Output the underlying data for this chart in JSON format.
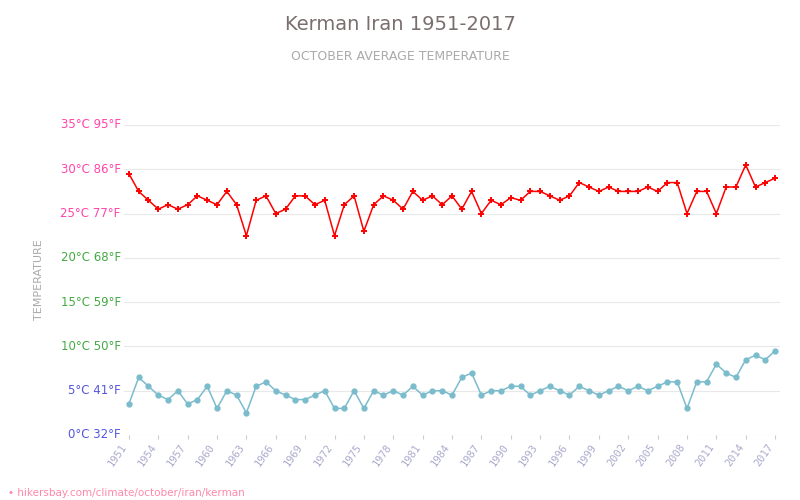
{
  "title": "Kerman Iran 1951-2017",
  "subtitle": "OCTOBER AVERAGE TEMPERATURE",
  "ylabel": "TEMPERATURE",
  "url": "• hikersbay.com/climate/october/iran/kerman",
  "title_color": "#7a6e6e",
  "subtitle_color": "#aaaaaa",
  "ylabel_color": "#aaaaaa",
  "background_color": "#ffffff",
  "grid_color": "#e8e8e8",
  "years": [
    1951,
    1952,
    1953,
    1954,
    1955,
    1956,
    1957,
    1958,
    1959,
    1960,
    1961,
    1962,
    1963,
    1964,
    1965,
    1966,
    1967,
    1968,
    1969,
    1970,
    1971,
    1972,
    1973,
    1974,
    1975,
    1976,
    1977,
    1978,
    1979,
    1980,
    1981,
    1982,
    1983,
    1984,
    1985,
    1986,
    1987,
    1988,
    1989,
    1990,
    1991,
    1992,
    1993,
    1994,
    1995,
    1996,
    1997,
    1998,
    1999,
    2000,
    2001,
    2002,
    2003,
    2004,
    2005,
    2006,
    2007,
    2008,
    2009,
    2010,
    2011,
    2012,
    2013,
    2014,
    2015,
    2016,
    2017
  ],
  "day_temps": [
    29.5,
    27.5,
    26.5,
    25.5,
    26.0,
    25.5,
    26.0,
    27.0,
    26.5,
    26.0,
    27.5,
    26.0,
    22.5,
    26.5,
    27.0,
    25.0,
    25.5,
    27.0,
    27.0,
    26.0,
    26.5,
    22.5,
    26.0,
    27.0,
    23.0,
    26.0,
    27.0,
    26.5,
    25.5,
    27.5,
    26.5,
    27.0,
    26.0,
    27.0,
    25.5,
    27.5,
    25.0,
    26.5,
    26.0,
    26.8,
    26.5,
    27.5,
    27.5,
    27.0,
    26.5,
    27.0,
    28.5,
    28.0,
    27.5,
    28.0,
    27.5,
    27.5,
    27.5,
    28.0,
    27.5,
    28.5,
    28.5,
    25.0,
    27.5,
    27.5,
    25.0,
    28.0,
    28.0,
    30.5,
    28.0,
    28.5,
    29.0
  ],
  "night_temps": [
    3.5,
    6.5,
    5.5,
    4.5,
    4.0,
    5.0,
    3.5,
    4.0,
    5.5,
    3.0,
    5.0,
    4.5,
    2.5,
    5.5,
    6.0,
    5.0,
    4.5,
    4.0,
    4.0,
    4.5,
    5.0,
    3.0,
    3.0,
    5.0,
    3.0,
    5.0,
    4.5,
    5.0,
    4.5,
    5.5,
    4.5,
    5.0,
    5.0,
    4.5,
    6.5,
    7.0,
    4.5,
    5.0,
    5.0,
    5.5,
    5.5,
    4.5,
    5.0,
    5.5,
    5.0,
    4.5,
    5.5,
    5.0,
    4.5,
    5.0,
    5.5,
    5.0,
    5.5,
    5.0,
    5.5,
    6.0,
    6.0,
    3.0,
    6.0,
    6.0,
    8.0,
    7.0,
    6.5,
    8.5,
    9.0,
    8.5,
    9.5
  ],
  "day_color": "#ff0000",
  "night_color": "#7bbccc",
  "yticks_c": [
    0,
    5,
    10,
    15,
    20,
    25,
    30,
    35
  ],
  "yticks_f": [
    32,
    41,
    50,
    59,
    68,
    77,
    86,
    95
  ],
  "ytick_colors": [
    "#5555dd",
    "#5555dd",
    "#44aa44",
    "#44aa44",
    "#44aa44",
    "#ff44aa",
    "#ff44aa",
    "#ff44aa"
  ],
  "xtick_years": [
    1951,
    1954,
    1957,
    1960,
    1963,
    1966,
    1969,
    1972,
    1975,
    1978,
    1981,
    1984,
    1987,
    1990,
    1993,
    1996,
    1999,
    2002,
    2005,
    2008,
    2011,
    2014,
    2017
  ],
  "ylim": [
    0,
    35
  ],
  "xlim": [
    1950.5,
    2017.5
  ],
  "figsize": [
    8.0,
    5.0
  ],
  "dpi": 100
}
